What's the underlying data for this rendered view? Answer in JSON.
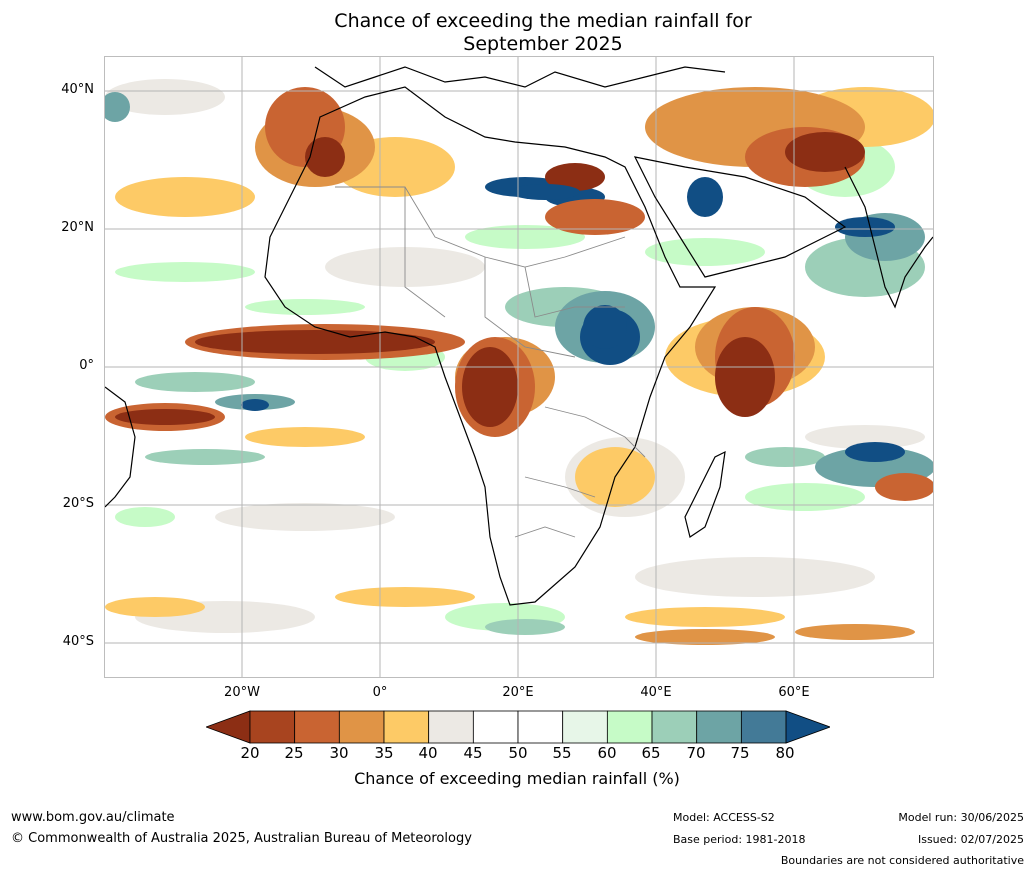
{
  "title_line1": "Chance of exceeding the median rainfall for",
  "title_line2": "September 2025",
  "lat_labels": [
    "40°N",
    "20°N",
    "0°",
    "20°S",
    "40°S"
  ],
  "lon_labels": [
    "20°W",
    "0°",
    "20°E",
    "40°E",
    "60°E"
  ],
  "colorbar": {
    "ticks": [
      "20",
      "25",
      "30",
      "35",
      "40",
      "45",
      "50",
      "55",
      "60",
      "65",
      "70",
      "75",
      "80"
    ],
    "label": "Chance of exceeding median rainfall (%)",
    "colors": [
      "#8c2e14",
      "#a8441f",
      "#c96432",
      "#e09446",
      "#fdca66",
      "#ece9e4",
      "#ffffff",
      "#ffffff",
      "#e7f6e8",
      "#c6fbc7",
      "#9ccfb8",
      "#6da4a5",
      "#437a97",
      "#114e84"
    ]
  },
  "footer": {
    "url": "www.bom.gov.au/climate",
    "copyright": "© Commonwealth of Australia 2025, Australian Bureau of Meteorology",
    "model": "Model: ACCESS-S2",
    "base_period": "Base period: 1981-2018",
    "model_run": "Model run: 30/06/2025",
    "issued": "Issued: 02/07/2025",
    "disclaimer": "Boundaries are not considered authoritative"
  }
}
